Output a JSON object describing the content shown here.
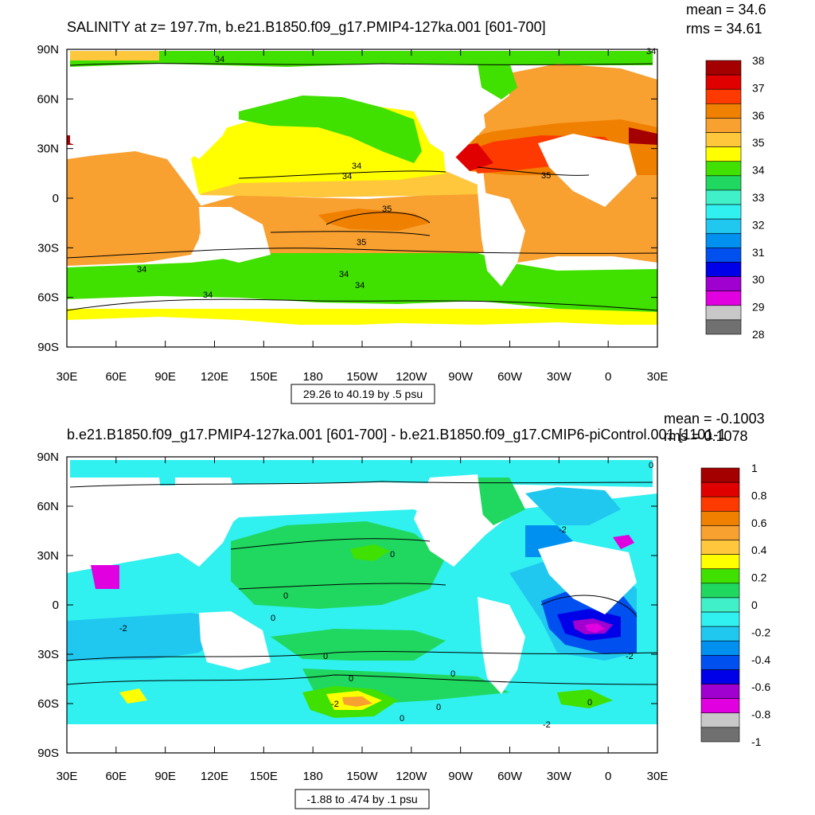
{
  "panels": [
    {
      "title": "SALINITY at z= 197.7m, b.e21.B1850.f09_g17.PMIP4-127ka.001 [601-700]",
      "stats": [
        "mean = 34.6",
        "rms = 34.61"
      ],
      "range_note": "29.26 to 40.19 by .5 psu"
    },
    {
      "title": "b.e21.B1850.f09_g17.PMIP4-127ka.001 [601-700] - b.e21.B1850.f09_g17.CMIP6-piControl.001 [1101-1",
      "stats": [
        "mean = -0.1003",
        "rms = 0.1078"
      ],
      "range_note": "-1.88 to .474 by .1 psu"
    }
  ],
  "chart_data": [
    {
      "type": "heatmap",
      "title": "SALINITY at z= 197.7m, b.e21.B1850.f09_g17.PMIP4-127ka.001 [601-700]",
      "xlabel": "",
      "ylabel": "",
      "x_ticks": [
        "30E",
        "60E",
        "90E",
        "120E",
        "150E",
        "180",
        "150W",
        "120W",
        "90W",
        "60W",
        "30W",
        "0",
        "30E"
      ],
      "y_ticks": [
        "90N",
        "60N",
        "30N",
        "0",
        "30S",
        "60S",
        "90S"
      ],
      "xlim": [
        30,
        390
      ],
      "ylim": [
        -90,
        90
      ],
      "colorbar": {
        "labels": [
          "38",
          "37",
          "36",
          "35",
          "34",
          "33",
          "32",
          "31",
          "30",
          "29",
          "28"
        ],
        "colors": [
          "#a50000",
          "#e00000",
          "#ff3a00",
          "#f08000",
          "#f8a030",
          "#ffc83c",
          "#ffff00",
          "#40e000",
          "#20d860",
          "#40f0c8",
          "#30f0f0",
          "#20c8f0",
          "#0090f0",
          "#0050f0",
          "#0000e8",
          "#a000d0",
          "#e000e0",
          "#c8c8c8",
          "#707070"
        ]
      },
      "contour_labels": [
        "34",
        "34",
        "34",
        "34",
        "34",
        "34",
        "34",
        "35",
        "35",
        "35"
      ],
      "mean": 34.6,
      "rms": 34.61,
      "units": "psu",
      "range_min": 29.26,
      "range_max": 40.19,
      "interval": 0.5
    },
    {
      "type": "heatmap",
      "title": "b.e21.B1850.f09_g17.PMIP4-127ka.001 [601-700] - b.e21.B1850.f09_g17.CMIP6-piControl.001 [1101-1",
      "xlabel": "",
      "ylabel": "",
      "x_ticks": [
        "30E",
        "60E",
        "90E",
        "120E",
        "150E",
        "180",
        "150W",
        "120W",
        "90W",
        "60W",
        "30W",
        "0",
        "30E"
      ],
      "y_ticks": [
        "90N",
        "60N",
        "30N",
        "0",
        "30S",
        "60S",
        "90S"
      ],
      "xlim": [
        30,
        390
      ],
      "ylim": [
        -90,
        90
      ],
      "colorbar": {
        "labels": [
          "1",
          "0.8",
          "0.6",
          "0.4",
          "0.2",
          "0",
          "-0.2",
          "-0.4",
          "-0.6",
          "-0.8",
          "-1"
        ],
        "colors": [
          "#a50000",
          "#e00000",
          "#ff3a00",
          "#f08000",
          "#f8a030",
          "#ffc83c",
          "#ffff00",
          "#40e000",
          "#20d860",
          "#40f0c8",
          "#30f0f0",
          "#20c8f0",
          "#0090f0",
          "#0050f0",
          "#0000e8",
          "#a000d0",
          "#e000e0",
          "#c8c8c8",
          "#707070"
        ]
      },
      "contour_labels": [
        "0",
        "0",
        "0",
        "0",
        "0",
        "0",
        "0",
        "-2",
        "-2",
        "-2",
        "-2",
        "-2",
        "-2"
      ],
      "mean": -0.1003,
      "rms": 0.1078,
      "units": "psu",
      "range_min": -1.88,
      "range_max": 0.474,
      "interval": 0.1
    }
  ]
}
